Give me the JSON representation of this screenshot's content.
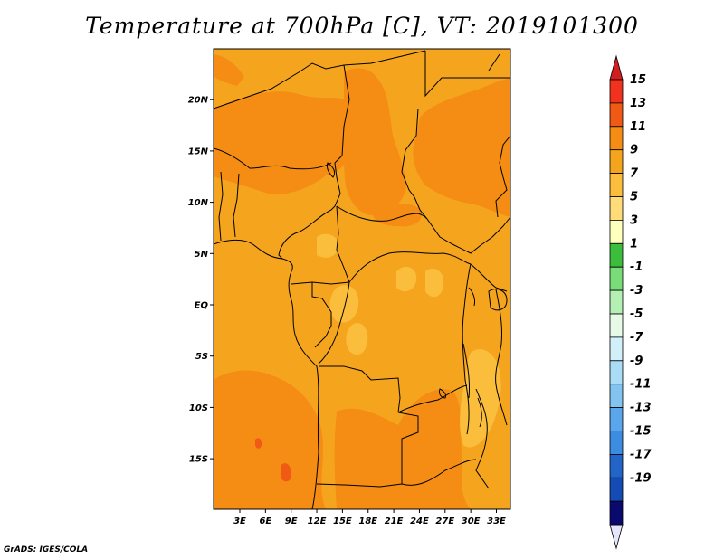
{
  "title": "Temperature at 700hPa [C], VT: 2019101300",
  "credit": "GrADS: IGES/COLA",
  "chart_data": {
    "type": "heatmap",
    "variable": "Temperature at 700hPa",
    "units": "C",
    "valid_time": "2019101300",
    "lon_range": [
      0,
      36
    ],
    "lat_range": [
      -20,
      25
    ],
    "lat_ticks": [
      {
        "value": 20,
        "label": "20N"
      },
      {
        "value": 15,
        "label": "15N"
      },
      {
        "value": 10,
        "label": "10N"
      },
      {
        "value": 5,
        "label": "5N"
      },
      {
        "value": 0,
        "label": "EQ"
      },
      {
        "value": -5,
        "label": "5S"
      },
      {
        "value": -10,
        "label": "10S"
      },
      {
        "value": -15,
        "label": "15S"
      }
    ],
    "lon_ticks": [
      {
        "value": 3,
        "label": "3E"
      },
      {
        "value": 6,
        "label": "6E"
      },
      {
        "value": 9,
        "label": "9E"
      },
      {
        "value": 12,
        "label": "12E"
      },
      {
        "value": 15,
        "label": "15E"
      },
      {
        "value": 18,
        "label": "18E"
      },
      {
        "value": 21,
        "label": "21E"
      },
      {
        "value": 24,
        "label": "24E"
      },
      {
        "value": 27,
        "label": "27E"
      },
      {
        "value": 30,
        "label": "30E"
      },
      {
        "value": 33,
        "label": "33E"
      }
    ],
    "colorbar_labels": [
      "15",
      "13",
      "11",
      "9",
      "7",
      "5",
      "3",
      "1",
      "-1",
      "-3",
      "-5",
      "-7",
      "-9",
      "-11",
      "-13",
      "-15",
      "-17",
      "-19"
    ],
    "colorbar_colors": [
      "#f0321e",
      "#f05a14",
      "#f58c14",
      "#f5a41e",
      "#fbbe3c",
      "#ffdc78",
      "#ffffbe",
      "#3cbe3c",
      "#78dc78",
      "#b4f0b4",
      "#e6fae6",
      "#d2f0fa",
      "#aadcf5",
      "#82c3f0",
      "#5aa5eb",
      "#3c8ce1",
      "#2364c8",
      "#144bb4",
      "#0a0a6e"
    ],
    "colorbar_top_color": "#d21e1e",
    "colorbar_bottom_color": "#e6e6fa",
    "dominant_range": [
      7,
      13
    ]
  }
}
